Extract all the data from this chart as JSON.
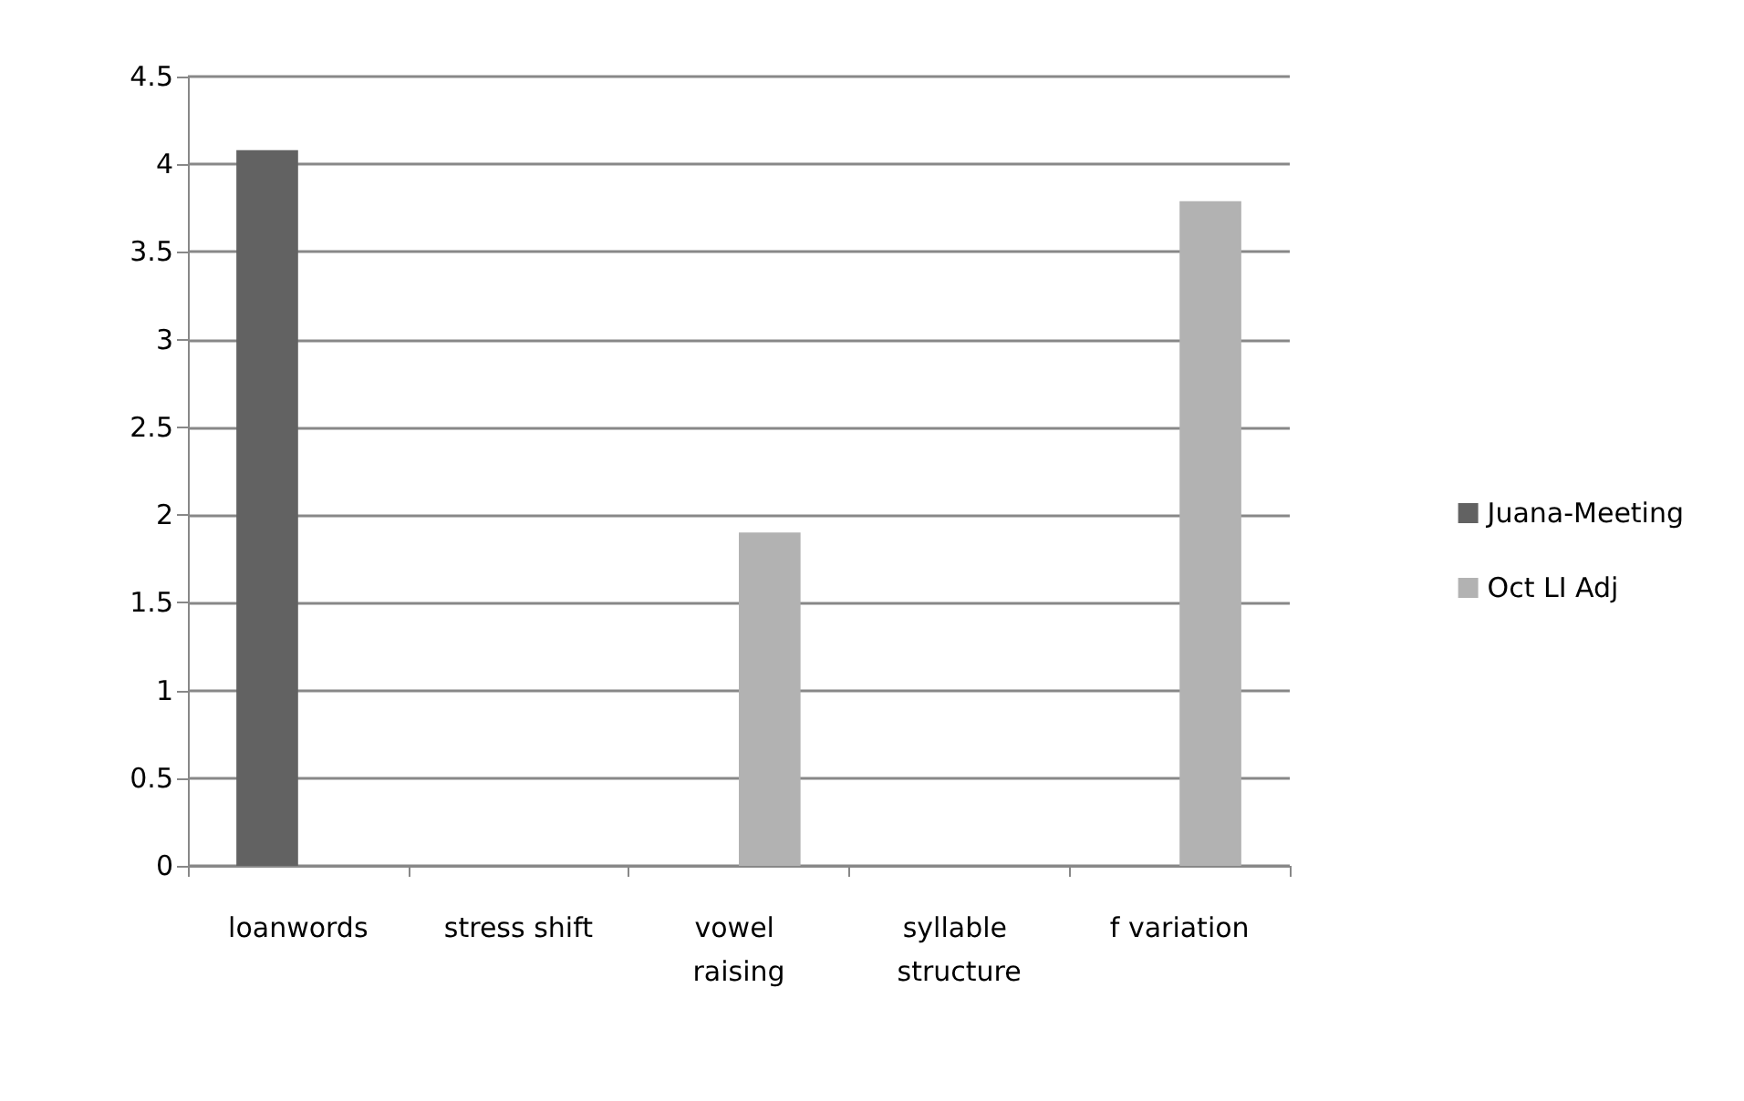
{
  "chart_data": {
    "type": "bar",
    "categories": [
      "loanwords",
      "stress shift",
      "vowel raising",
      "syllable structure",
      "f variation"
    ],
    "series": [
      {
        "name": "Juana-Meeting",
        "color": "#626262",
        "values": [
          4.08,
          null,
          null,
          null,
          null
        ]
      },
      {
        "name": "Oct LI Adj",
        "color": "#b2b2b2",
        "values": [
          null,
          null,
          1.9,
          null,
          3.79
        ]
      }
    ],
    "ylim": [
      0,
      4.5
    ],
    "yticks": [
      0,
      0.5,
      1,
      1.5,
      2,
      2.5,
      3,
      3.5,
      4,
      4.5
    ],
    "grid": "y",
    "legend": "right"
  }
}
